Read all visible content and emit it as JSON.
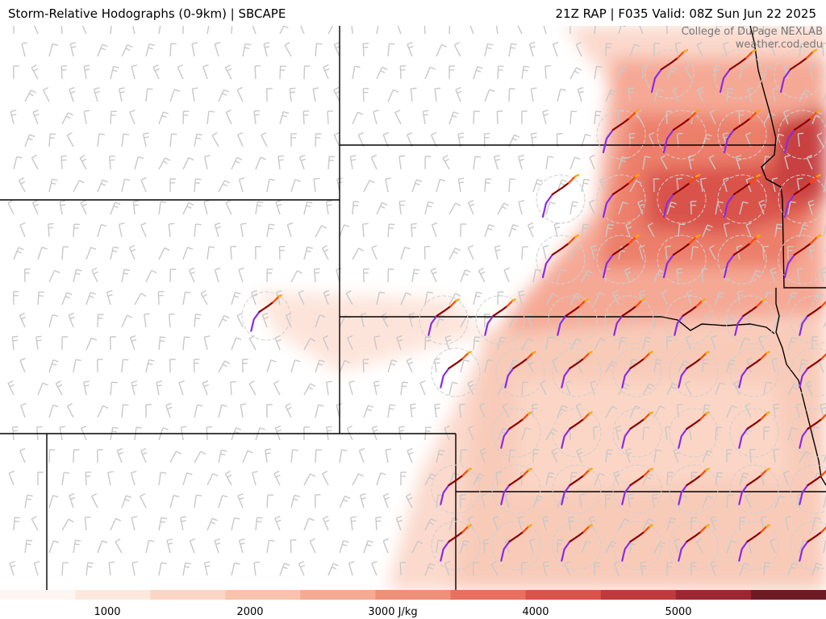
{
  "header": {
    "left_title": "Storm-Relative Hodographs (0-9km) | SBCAPE",
    "right_title": "21Z RAP | F035 Valid: 08Z Sun Jun 22 2025"
  },
  "credit": {
    "line1": "College of DuPage NEXLAB",
    "line2": "weather.cod.edu"
  },
  "colorbar": {
    "unit": "J/kg",
    "range": [
      0,
      6000
    ],
    "ticks": [
      {
        "value": 1000,
        "label": "1000"
      },
      {
        "value": 2000,
        "label": "2000"
      },
      {
        "value": 3000,
        "label": "3000 J/kg"
      },
      {
        "value": 4000,
        "label": "4000"
      },
      {
        "value": 5000,
        "label": "5000"
      }
    ],
    "colors": [
      "#fef6f2",
      "#fde8de",
      "#fbd6c6",
      "#f9c2ad",
      "#f5aa93",
      "#f08f78",
      "#e8705f",
      "#d9534b",
      "#bf3a3c",
      "#9b2731",
      "#6e1a25"
    ]
  },
  "layers": {
    "cape_field": "sbcape-shading",
    "wind_barbs": "gray-wind-barbs",
    "hodographs": "storm-relative-hodographs",
    "boundaries": "state-county-borders"
  },
  "hodograph_colors": {
    "0-1km": "#8a2be2",
    "1-3km": "#8b0000",
    "3-6km": "#ff4500",
    "6-9km": "#ffa500"
  }
}
